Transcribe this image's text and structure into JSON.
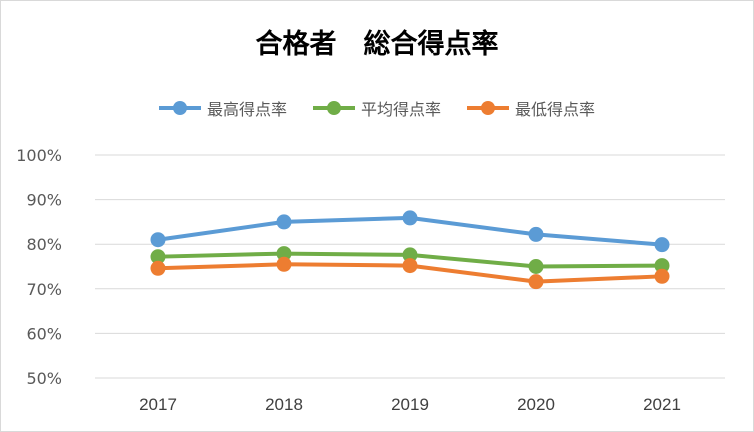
{
  "chart_data": {
    "type": "line",
    "title": "合格者　総合得点率",
    "categories": [
      "2017",
      "2018",
      "2019",
      "2020",
      "2021"
    ],
    "yticks": [
      "50%",
      "60%",
      "70%",
      "80%",
      "90%",
      "100%"
    ],
    "ylim": [
      50,
      100
    ],
    "grid": true,
    "legend_position": "top",
    "series": [
      {
        "name": "最高得点率",
        "color": "#5b9bd5",
        "values": [
          81.0,
          85.0,
          85.9,
          82.2,
          79.9
        ]
      },
      {
        "name": "平均得点率",
        "color": "#70ad47",
        "values": [
          77.2,
          77.9,
          77.6,
          75.0,
          75.2
        ]
      },
      {
        "name": "最低得点率",
        "color": "#ed7d31",
        "values": [
          74.6,
          75.5,
          75.2,
          71.6,
          72.8
        ]
      }
    ]
  }
}
